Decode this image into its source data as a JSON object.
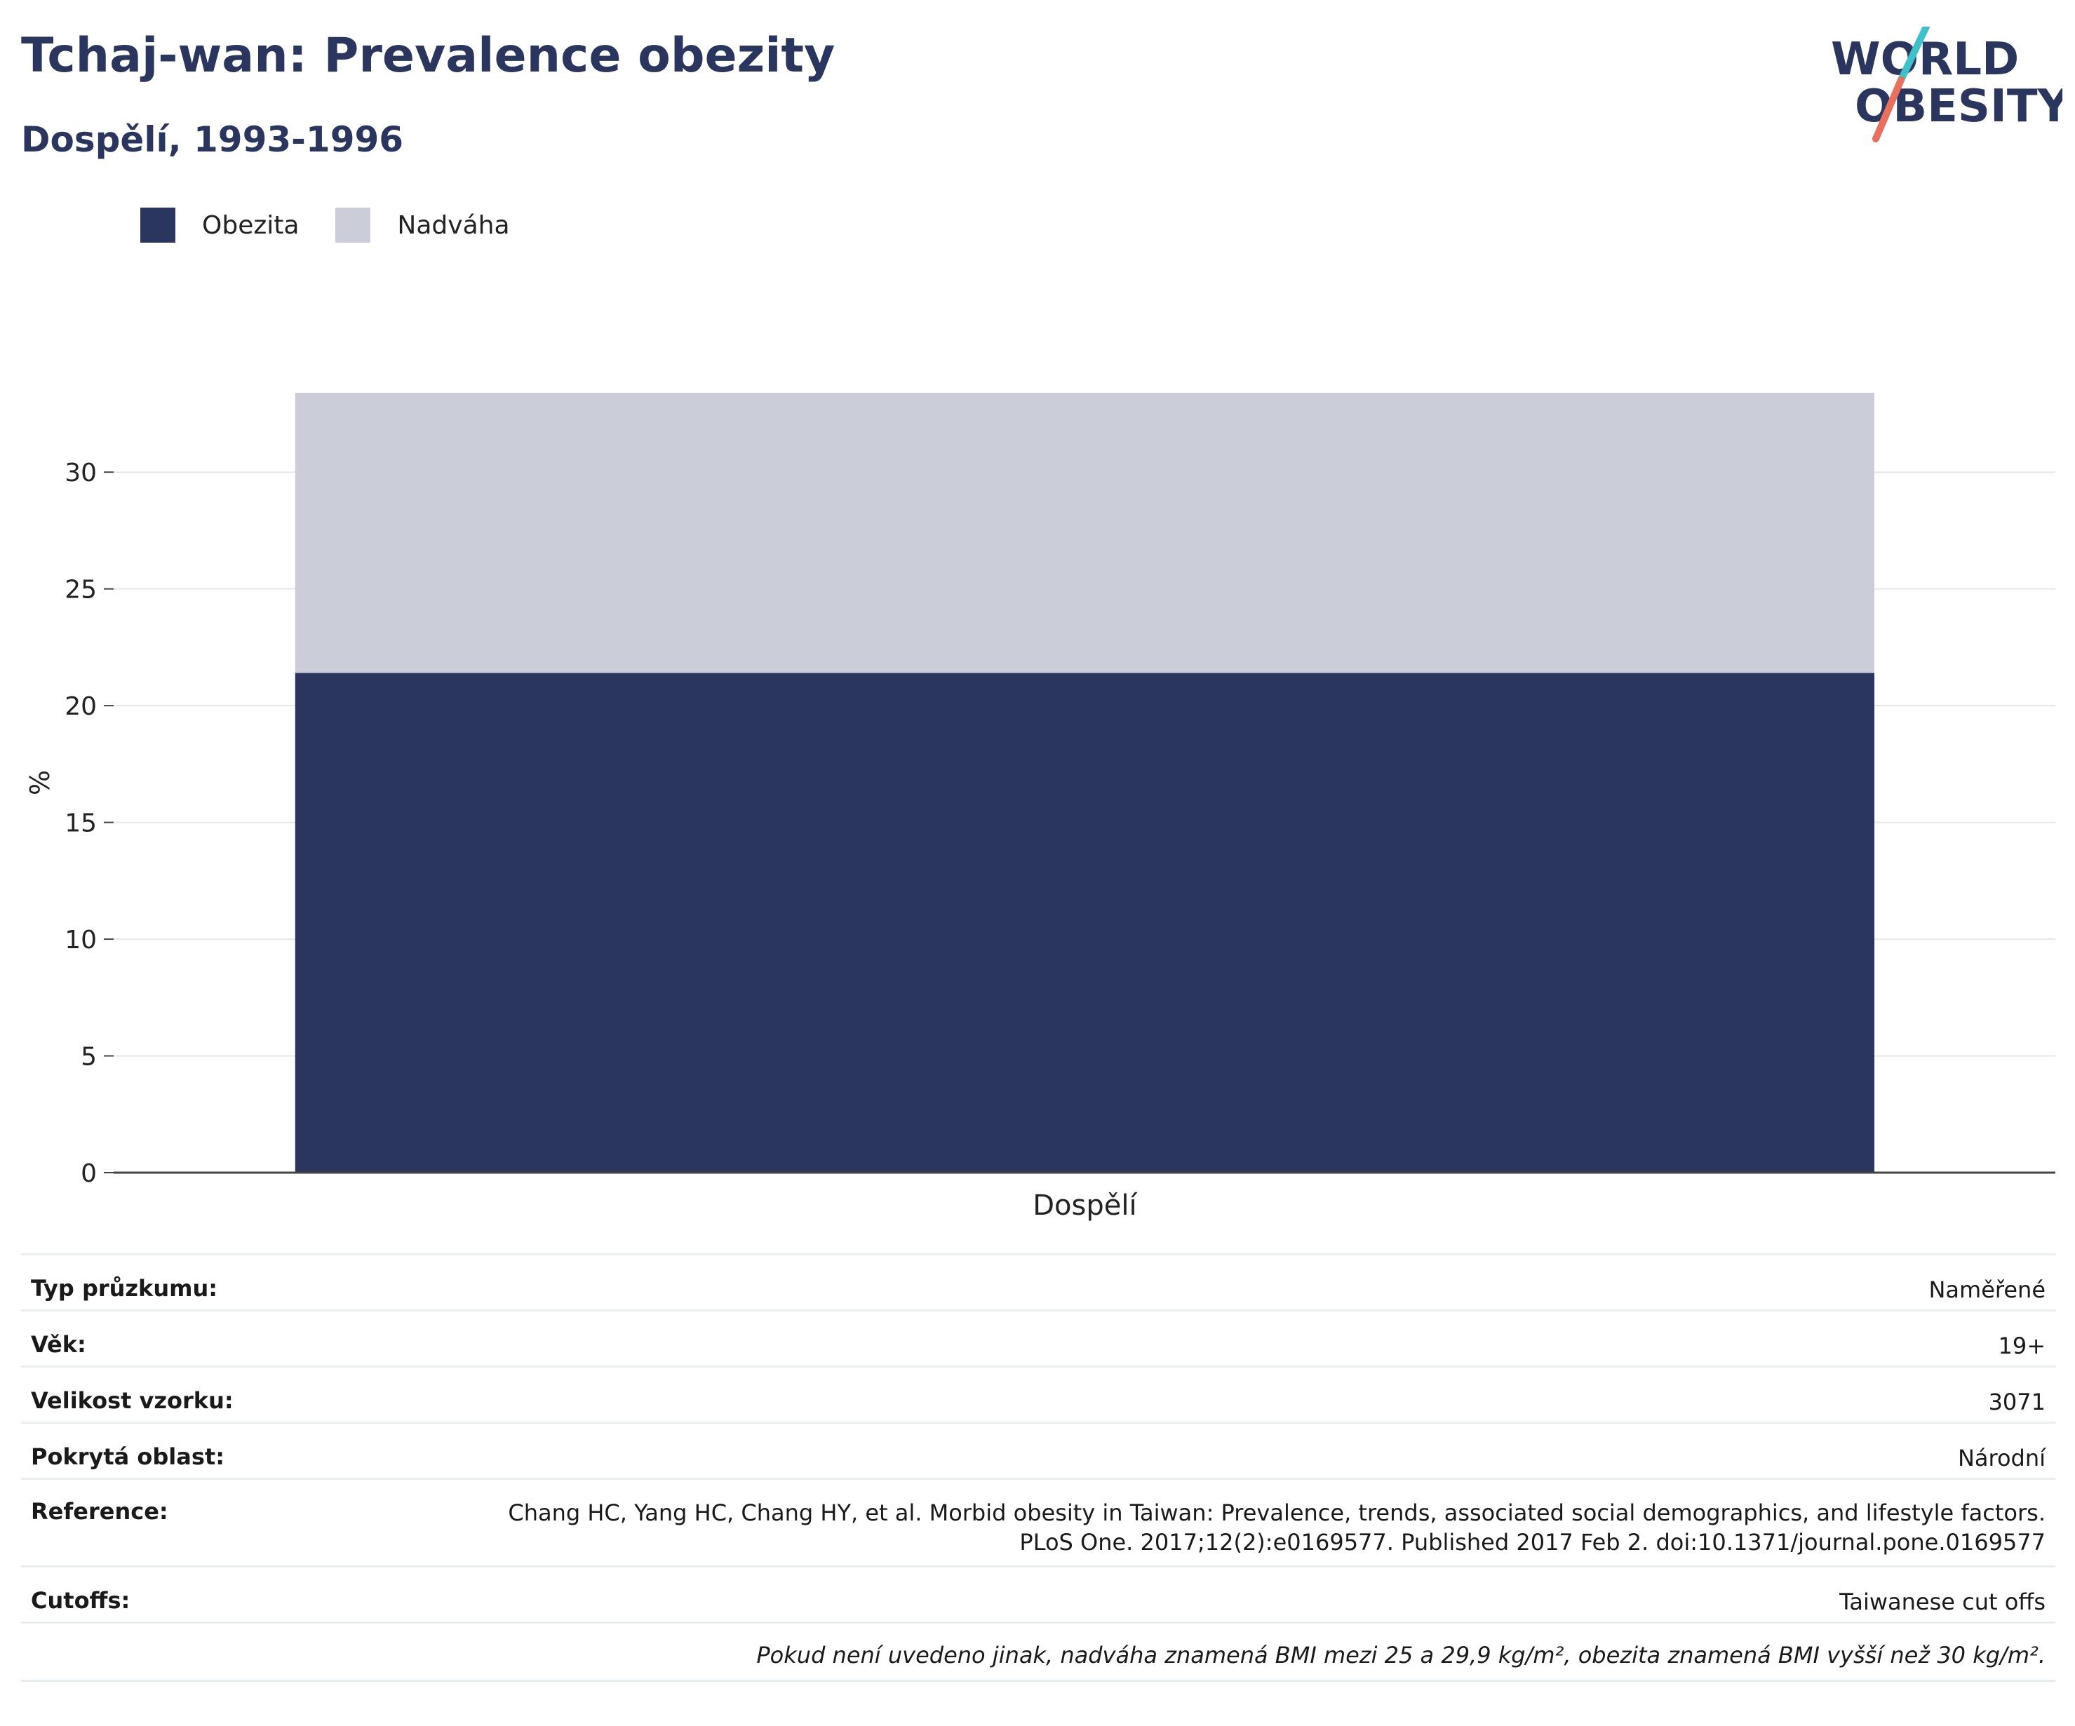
{
  "header": {
    "title": "Tchaj-wan: Prevalence obezity",
    "subtitle": "Dospělí, 1993-1996"
  },
  "logo": {
    "line1": "WORLD",
    "line2": "OBESITY",
    "accent_1": "#3ec1c9",
    "accent_2": "#e9705f"
  },
  "colors": {
    "obesity": "#2b365f",
    "overweight": "#cbcdd8",
    "text_dark": "#2b365f"
  },
  "chart_data": {
    "type": "bar",
    "stacked": true,
    "categories": [
      "Dospělí"
    ],
    "series": [
      {
        "name": "Obezita",
        "values": [
          21.4
        ]
      },
      {
        "name": "Nadváha",
        "values": [
          12.0
        ]
      }
    ],
    "title": "",
    "xlabel": "",
    "ylabel": "%",
    "ylim": [
      0,
      33.4
    ],
    "yticks": [
      0,
      5,
      10,
      15,
      20,
      25,
      30
    ],
    "grid": true,
    "legend": "top-left"
  },
  "info": {
    "rows": [
      {
        "label": "Typ průzkumu:",
        "value": "Naměřené"
      },
      {
        "label": "Věk:",
        "value": "19+"
      },
      {
        "label": "Velikost vzorku:",
        "value": "3071"
      },
      {
        "label": "Pokrytá oblast:",
        "value": "Národní"
      },
      {
        "label": "Reference:",
        "value": "Chang HC, Yang HC, Chang HY, et al. Morbid obesity in Taiwan: Prevalence, trends, associated social demographics, and lifestyle factors. PLoS One. 2017;12(2):e0169577. Published 2017 Feb 2. doi:10.1371/journal.pone.0169577"
      },
      {
        "label": "Cutoffs:",
        "value": "Taiwanese cut offs"
      }
    ],
    "note": "Pokud není uvedeno jinak, nadváha znamená BMI mezi 25 a 29,9 kg/m², obezita znamená BMI vyšší než 30 kg/m²."
  }
}
